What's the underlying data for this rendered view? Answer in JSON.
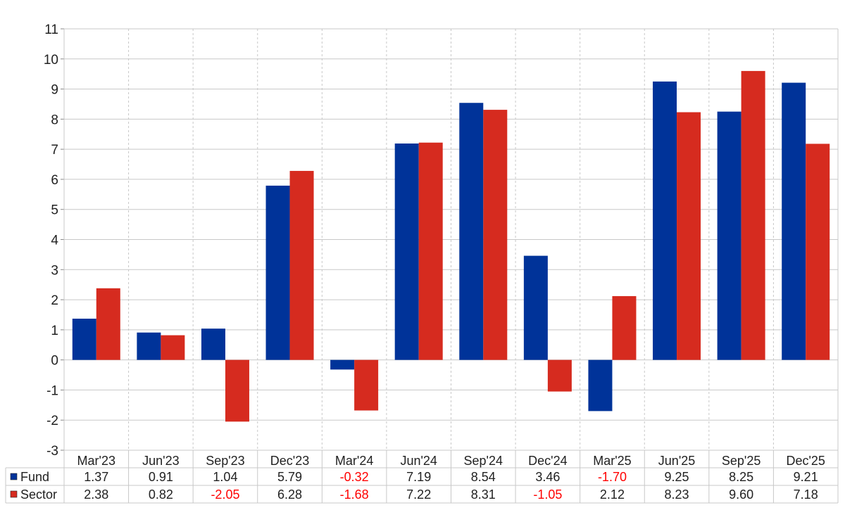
{
  "chart_data": {
    "type": "bar",
    "categories": [
      "Mar'23",
      "Jun'23",
      "Sep'23",
      "Dec'23",
      "Mar'24",
      "Jun'24",
      "Sep'24",
      "Dec'24",
      "Mar'25",
      "Jun'25",
      "Sep'25",
      "Dec'25"
    ],
    "series": [
      {
        "name": "Fund",
        "color": "#003399",
        "values": [
          1.37,
          0.91,
          1.04,
          5.79,
          -0.32,
          7.19,
          8.54,
          3.46,
          -1.7,
          9.25,
          8.25,
          9.21
        ],
        "labels": [
          "1.37",
          "0.91",
          "1.04",
          "5.79",
          "-0.32",
          "7.19",
          "8.54",
          "3.46",
          "-1.70",
          "9.25",
          "8.25",
          "9.21"
        ]
      },
      {
        "name": "Sector",
        "color": "#d62b1f",
        "values": [
          2.38,
          0.82,
          -2.05,
          6.28,
          -1.68,
          7.22,
          8.31,
          -1.05,
          2.12,
          8.23,
          9.6,
          7.18
        ],
        "labels": [
          "2.38",
          "0.82",
          "-2.05",
          "6.28",
          "-1.68",
          "7.22",
          "8.31",
          "-1.05",
          "2.12",
          "8.23",
          "9.60",
          "7.18"
        ]
      }
    ],
    "ylim": [
      -3,
      11
    ],
    "yticks": [
      "-3",
      "-2",
      "-1",
      "0",
      "1",
      "2",
      "3",
      "4",
      "5",
      "6",
      "7",
      "8",
      "9",
      "10",
      "11"
    ],
    "title": "",
    "xlabel": "",
    "ylabel": "",
    "grid": true,
    "legend": "data-table-below",
    "negative_label_color": "#ff0000"
  }
}
